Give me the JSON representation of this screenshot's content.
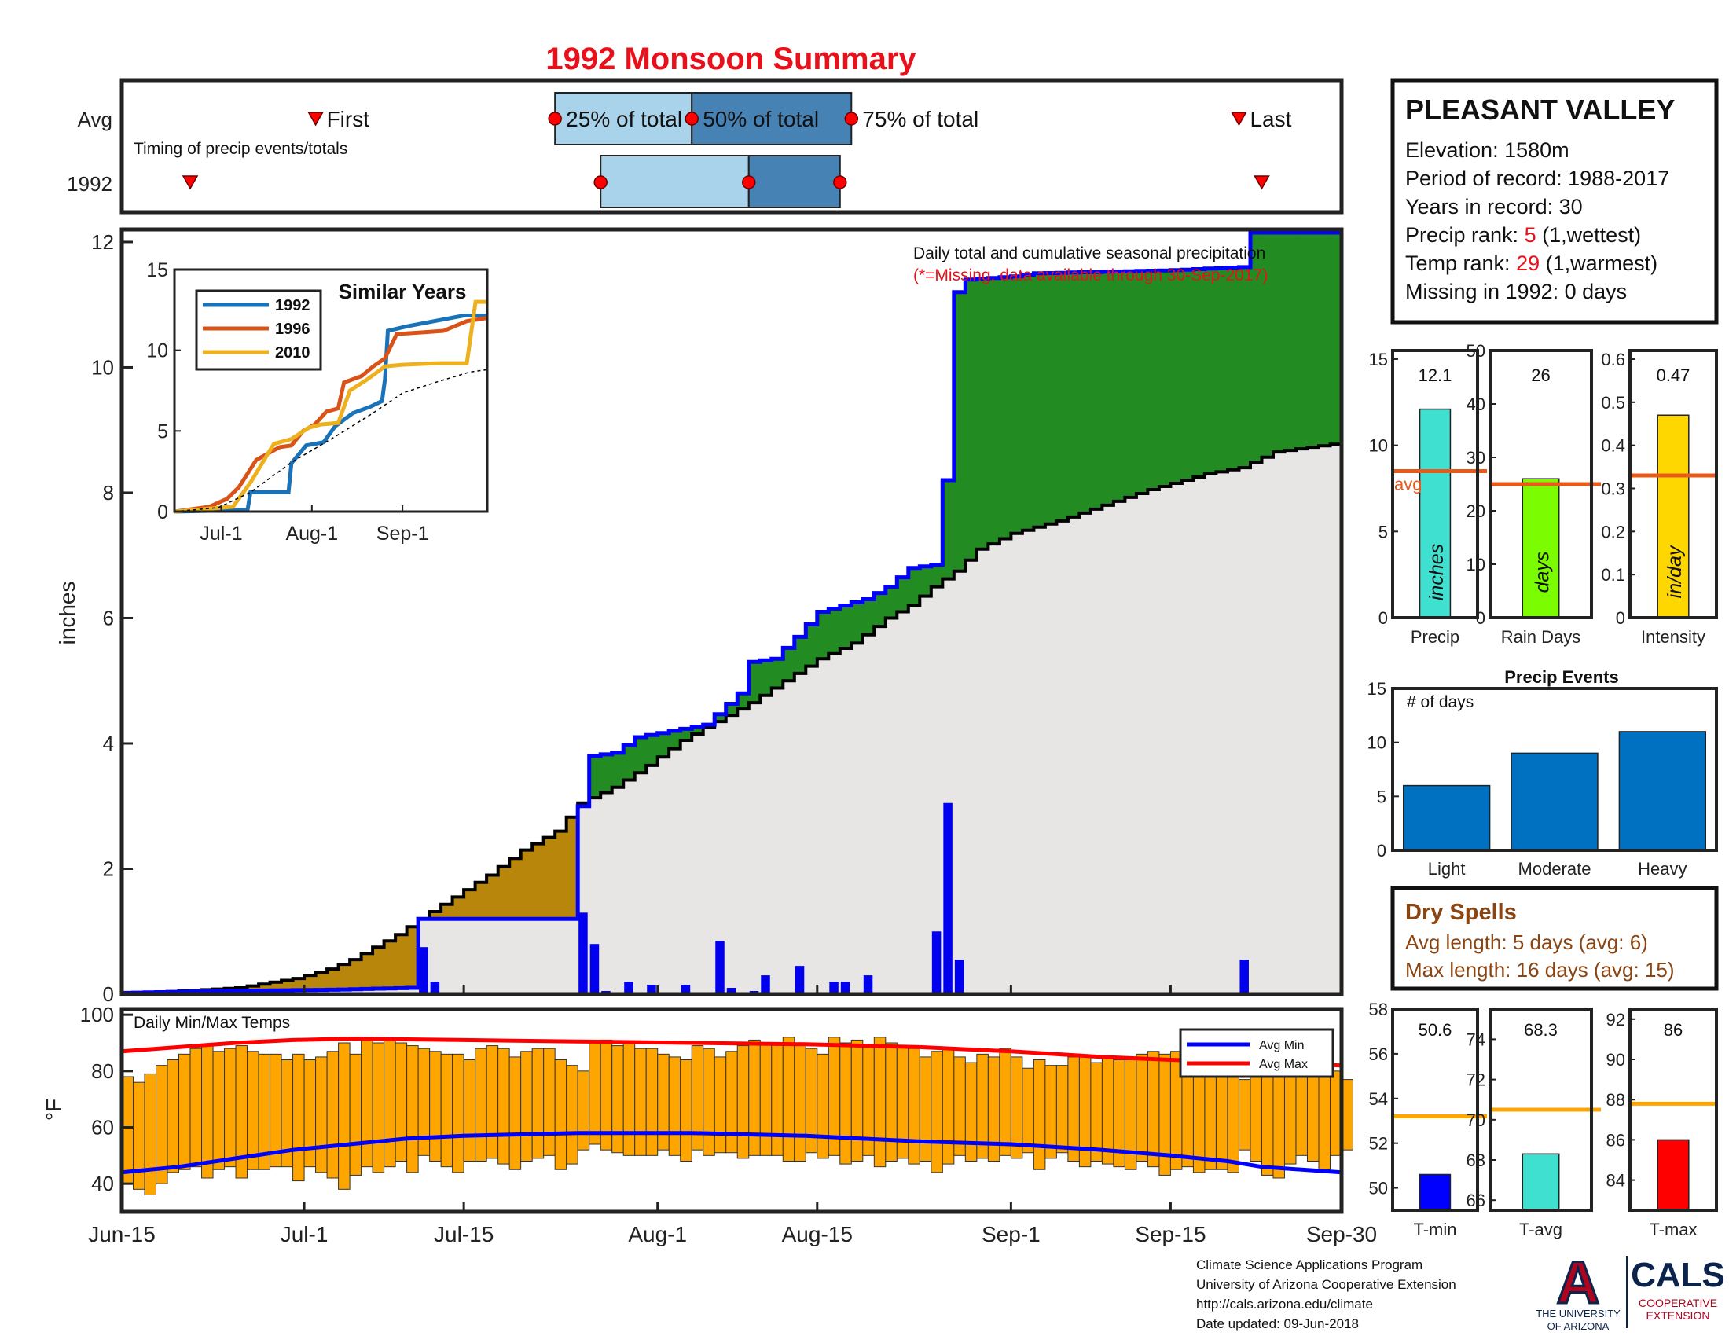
{
  "title": "1992 Monsoon Summary",
  "colors": {
    "title": "#e8101a",
    "precip_total_line": "#0000ff",
    "precip_bar": "#0000ee",
    "avg_cumulative_fill": "#e8e6e4",
    "above_avg_fill": "#228b22",
    "below_avg_fill": "#b8860b",
    "avg_min_line": "#0000ff",
    "avg_max_line": "#ff0000",
    "temp_bar": "#ffa500",
    "timing_light": "#a9d3ea",
    "timing_dark": "#4682b4",
    "marker": "#ff0000",
    "dry_spell_text": "#8b4513",
    "event_bar": "#0070c0",
    "avg_line": "#e85a1a",
    "tavg_line": "#ffa500"
  },
  "timing": {
    "row_labels": [
      "Avg",
      "1992"
    ],
    "note": "Timing of precip events/totals",
    "labels": {
      "first": "First",
      "q25": "25% of total",
      "q50": "50% of total",
      "q75": "75% of total",
      "last": "Last"
    },
    "avg": {
      "first": 17,
      "q25": 38,
      "q50": 50,
      "q75": 64,
      "last": 98
    },
    "year": {
      "first": 6,
      "q25": 42,
      "q50": 55,
      "q75": 63,
      "last": 100
    }
  },
  "x_ticks": [
    "Jun-15",
    "Jul-1",
    "Jul-15",
    "Aug-1",
    "Aug-15",
    "Sep-1",
    "Sep-15",
    "Sep-30"
  ],
  "x_tick_days": [
    0,
    16,
    30,
    47,
    61,
    78,
    92,
    107
  ],
  "station": {
    "name": "PLEASANT VALLEY",
    "elevation_label": "Elevation: 1580m",
    "period_label": "Period of record: 1988-2017",
    "years_label": "Years in record: 30",
    "precip_rank_prefix": "Precip rank: ",
    "precip_rank_value": "5",
    "precip_rank_suffix": " (1,wettest)",
    "temp_rank_prefix": "Temp rank: ",
    "temp_rank_value": "29",
    "temp_rank_suffix": " (1,warmest)",
    "missing_label": "Missing in 1992: 0 days"
  },
  "precip_notes": {
    "line1": "Daily total and cumulative seasonal precipitation",
    "line2": "(*=Missing, data available through 30-Sep-2017)"
  },
  "footer": {
    "line1": "Climate Science Applications Program",
    "line2": "University of Arizona Cooperative Extension",
    "line3": "http://cals.arizona.edu/climate",
    "line4": " Date updated: 09-Jun-2018",
    "logo_ua_1": "THE UNIVERSITY",
    "logo_ua_2": "OF ARIZONA",
    "logo_cals": "CALS",
    "logo_cals_1": "COOPERATIVE",
    "logo_cals_2": "EXTENSION"
  },
  "dry_spells": {
    "title": "Dry Spells",
    "avg_line": "Avg length: 5 days (avg: 6)",
    "max_line": "Max length: 16 days (avg: 15)"
  },
  "chart_data": [
    {
      "id": "cumulative_precip",
      "type": "area",
      "ylabel": "inches",
      "ylim": [
        0,
        12.2
      ],
      "yticks": [
        0,
        2,
        4,
        6,
        8,
        10,
        12
      ],
      "x_days": [
        0,
        107
      ],
      "year_cumulative": [
        [
          0,
          0.02
        ],
        [
          8,
          0.05
        ],
        [
          18,
          0.07
        ],
        [
          25,
          0.1
        ],
        [
          26,
          1.2
        ],
        [
          39,
          1.2
        ],
        [
          40,
          3.0
        ],
        [
          41,
          3.8
        ],
        [
          43,
          3.85
        ],
        [
          45,
          4.1
        ],
        [
          48,
          4.2
        ],
        [
          51,
          4.3
        ],
        [
          54,
          4.8
        ],
        [
          55,
          5.3
        ],
        [
          57,
          5.35
        ],
        [
          59,
          5.7
        ],
        [
          61,
          6.1
        ],
        [
          65,
          6.3
        ],
        [
          67,
          6.5
        ],
        [
          69,
          6.8
        ],
        [
          71,
          6.85
        ],
        [
          72,
          8.2
        ],
        [
          73,
          11.2
        ],
        [
          74,
          11.4
        ],
        [
          78,
          11.45
        ],
        [
          80,
          11.5
        ],
        [
          92,
          11.55
        ],
        [
          98,
          11.6
        ],
        [
          99,
          12.15
        ],
        [
          107,
          12.15
        ]
      ],
      "avg_cumulative": [
        [
          0,
          0
        ],
        [
          5,
          0.05
        ],
        [
          10,
          0.1
        ],
        [
          15,
          0.25
        ],
        [
          18,
          0.4
        ],
        [
          20,
          0.55
        ],
        [
          22,
          0.75
        ],
        [
          24,
          0.95
        ],
        [
          26,
          1.2
        ],
        [
          29,
          1.55
        ],
        [
          32,
          1.9
        ],
        [
          35,
          2.3
        ],
        [
          38,
          2.6
        ],
        [
          40,
          3.05
        ],
        [
          43,
          3.3
        ],
        [
          46,
          3.65
        ],
        [
          49,
          4.05
        ],
        [
          52,
          4.35
        ],
        [
          55,
          4.65
        ],
        [
          58,
          5.0
        ],
        [
          61,
          5.35
        ],
        [
          64,
          5.6
        ],
        [
          67,
          6.0
        ],
        [
          69,
          6.2
        ],
        [
          71,
          6.5
        ],
        [
          73,
          6.75
        ],
        [
          75,
          7.1
        ],
        [
          78,
          7.35
        ],
        [
          82,
          7.55
        ],
        [
          86,
          7.8
        ],
        [
          90,
          8.05
        ],
        [
          95,
          8.3
        ],
        [
          98,
          8.4
        ],
        [
          101,
          8.65
        ],
        [
          105,
          8.75
        ],
        [
          107,
          8.8
        ]
      ],
      "daily_precip": [
        [
          0,
          0.02
        ],
        [
          8,
          0.03
        ],
        [
          18,
          0.02
        ],
        [
          26,
          0.75
        ],
        [
          27,
          0.2
        ],
        [
          40,
          1.3
        ],
        [
          41,
          0.8
        ],
        [
          42,
          0.05
        ],
        [
          44,
          0.2
        ],
        [
          46,
          0.15
        ],
        [
          49,
          0.15
        ],
        [
          52,
          0.85
        ],
        [
          53,
          0.1
        ],
        [
          55,
          0.05
        ],
        [
          56,
          0.3
        ],
        [
          59,
          0.45
        ],
        [
          62,
          0.2
        ],
        [
          63,
          0.2
        ],
        [
          65,
          0.3
        ],
        [
          71,
          1.0
        ],
        [
          72,
          3.05
        ],
        [
          73,
          0.55
        ],
        [
          98,
          0.55
        ]
      ]
    },
    {
      "id": "similar_years",
      "type": "line",
      "title": "Similar Years",
      "xticks": [
        "Jul-1",
        "Aug-1",
        "Sep-1"
      ],
      "xtick_days": [
        16,
        47,
        78
      ],
      "ylim": [
        0,
        15
      ],
      "yticks": [
        0,
        5,
        10,
        15
      ],
      "series": [
        {
          "name": "1992",
          "color": "#1a72b8",
          "values": [
            [
              0,
              0
            ],
            [
              25,
              0.1
            ],
            [
              26,
              1.2
            ],
            [
              39,
              1.2
            ],
            [
              40,
              3.0
            ],
            [
              45,
              4.1
            ],
            [
              51,
              4.3
            ],
            [
              55,
              5.3
            ],
            [
              61,
              6.1
            ],
            [
              67,
              6.5
            ],
            [
              71,
              6.85
            ],
            [
              72,
              8.2
            ],
            [
              73,
              11.2
            ],
            [
              80,
              11.5
            ],
            [
              99,
              12.15
            ],
            [
              107,
              12.15
            ]
          ]
        },
        {
          "name": "1996",
          "color": "#d95319",
          "values": [
            [
              0,
              0
            ],
            [
              12,
              0.3
            ],
            [
              18,
              0.8
            ],
            [
              22,
              1.5
            ],
            [
              28,
              3.2
            ],
            [
              32,
              3.6
            ],
            [
              36,
              4.0
            ],
            [
              40,
              4.1
            ],
            [
              44,
              5.0
            ],
            [
              48,
              5.4
            ],
            [
              52,
              6.2
            ],
            [
              56,
              6.4
            ],
            [
              58,
              8.0
            ],
            [
              64,
              8.4
            ],
            [
              68,
              9.0
            ],
            [
              72,
              9.5
            ],
            [
              76,
              11.0
            ],
            [
              84,
              11.1
            ],
            [
              92,
              11.2
            ],
            [
              100,
              11.8
            ],
            [
              107,
              12.0
            ]
          ]
        },
        {
          "name": "2010",
          "color": "#edb120",
          "values": [
            [
              0,
              0
            ],
            [
              20,
              0.3
            ],
            [
              26,
              1.8
            ],
            [
              30,
              3.0
            ],
            [
              34,
              4.2
            ],
            [
              40,
              4.5
            ],
            [
              46,
              5.2
            ],
            [
              50,
              5.4
            ],
            [
              56,
              5.5
            ],
            [
              60,
              7.5
            ],
            [
              66,
              8.2
            ],
            [
              72,
              9.0
            ],
            [
              78,
              9.1
            ],
            [
              90,
              9.2
            ],
            [
              100,
              9.2
            ],
            [
              103,
              13.0
            ],
            [
              107,
              13.0
            ]
          ]
        },
        {
          "name": "Average",
          "color": "#000000",
          "dashed": true,
          "values": [
            [
              0,
              0
            ],
            [
              15,
              0.25
            ],
            [
              26,
              1.2
            ],
            [
              40,
              3.05
            ],
            [
              55,
              4.65
            ],
            [
              67,
              6.0
            ],
            [
              78,
              7.35
            ],
            [
              90,
              8.05
            ],
            [
              101,
              8.65
            ],
            [
              107,
              8.8
            ]
          ]
        }
      ]
    },
    {
      "id": "daily_temps",
      "type": "bar",
      "title": "Daily Min/Max Temps",
      "ylabel": "°F",
      "ylim": [
        30,
        102
      ],
      "yticks": [
        40,
        60,
        80,
        100
      ],
      "legend": [
        "Avg Min",
        "Avg Max"
      ],
      "legend_position": "top-right",
      "max": [
        78,
        76,
        79,
        82,
        84,
        86,
        88,
        89,
        87,
        88,
        89,
        87,
        86,
        86,
        84,
        86,
        84,
        85,
        87,
        90,
        86,
        92,
        90,
        91,
        90,
        89,
        88,
        87,
        86,
        86,
        84,
        88,
        89,
        88,
        85,
        87,
        88,
        88,
        84,
        82,
        80,
        90,
        91,
        89,
        90,
        88,
        88,
        86,
        85,
        84,
        89,
        88,
        85,
        87,
        89,
        91,
        90,
        90,
        92,
        90,
        88,
        86,
        92,
        90,
        91,
        89,
        92,
        90,
        89,
        88,
        85,
        87,
        88,
        85,
        83,
        86,
        85,
        88,
        85,
        81,
        84,
        82,
        82,
        85,
        85,
        83,
        85,
        84,
        84,
        86,
        87,
        86,
        87,
        86,
        88,
        85,
        84,
        83,
        77,
        78,
        83,
        86,
        84,
        82,
        83,
        84,
        80,
        77
      ],
      "min": [
        40,
        38,
        36,
        40,
        44,
        45,
        46,
        42,
        45,
        46,
        42,
        45,
        45,
        46,
        46,
        41,
        46,
        44,
        42,
        38,
        43,
        46,
        44,
        46,
        48,
        44,
        50,
        48,
        46,
        44,
        48,
        48,
        49,
        47,
        45,
        48,
        49,
        50,
        45,
        47,
        52,
        54,
        52,
        51,
        50,
        50,
        50,
        52,
        50,
        48,
        52,
        50,
        51,
        51,
        49,
        50,
        50,
        50,
        48,
        48,
        51,
        49,
        50,
        47,
        48,
        50,
        46,
        48,
        49,
        47,
        48,
        44,
        47,
        50,
        48,
        49,
        48,
        50,
        49,
        51,
        45,
        49,
        51,
        48,
        46,
        48,
        47,
        46,
        45,
        48,
        46,
        43,
        45,
        46,
        44,
        45,
        45,
        44,
        52,
        48,
        43,
        42,
        47,
        50,
        48,
        45,
        50,
        52
      ],
      "avg_max": [
        [
          0,
          87
        ],
        [
          5,
          88.5
        ],
        [
          10,
          90
        ],
        [
          15,
          91
        ],
        [
          20,
          91.5
        ],
        [
          30,
          91
        ],
        [
          40,
          90.5
        ],
        [
          50,
          90
        ],
        [
          60,
          89.5
        ],
        [
          70,
          88.5
        ],
        [
          78,
          87
        ],
        [
          86,
          85
        ],
        [
          92,
          84
        ],
        [
          100,
          83
        ],
        [
          107,
          82
        ]
      ],
      "avg_min": [
        [
          0,
          44
        ],
        [
          5,
          46
        ],
        [
          10,
          49
        ],
        [
          15,
          52
        ],
        [
          20,
          54
        ],
        [
          25,
          56
        ],
        [
          30,
          57
        ],
        [
          40,
          58
        ],
        [
          50,
          58
        ],
        [
          60,
          57
        ],
        [
          70,
          55
        ],
        [
          78,
          54
        ],
        [
          86,
          52
        ],
        [
          92,
          50
        ],
        [
          97,
          48
        ],
        [
          100,
          46
        ],
        [
          107,
          44
        ]
      ]
    },
    {
      "id": "seasonal_precip",
      "type": "bar",
      "categories": [
        "Precip",
        "Rain Days",
        "Intensity"
      ],
      "panels": [
        {
          "label": "Precip",
          "value": 12.1,
          "value_label": "12.1",
          "avg": 8.5,
          "ylim": [
            0,
            15.5
          ],
          "yticks": [
            0,
            5,
            10,
            15
          ],
          "color": "#40e0d0",
          "unit": "inches",
          "avg_label": "avg"
        },
        {
          "label": "Rain Days",
          "value": 26,
          "value_label": "26",
          "avg": 25,
          "ylim": [
            0,
            50
          ],
          "yticks": [
            0,
            10,
            20,
            30,
            40,
            50
          ],
          "color": "#7cfc00",
          "unit": "days"
        },
        {
          "label": "Intensity",
          "value": 0.47,
          "value_label": "0.47",
          "avg": 0.33,
          "ylim": [
            0,
            0.62
          ],
          "yticks": [
            0,
            0.1,
            0.2,
            0.3,
            0.4,
            0.5,
            0.6
          ],
          "color": "#ffd700",
          "unit": "in/day"
        }
      ]
    },
    {
      "id": "precip_events",
      "type": "bar",
      "title": "Precip Events",
      "ylabel": "# of days",
      "categories": [
        "Light",
        "Moderate",
        "Heavy"
      ],
      "values": [
        6,
        9,
        11
      ],
      "ylim": [
        0,
        15
      ],
      "yticks": [
        0,
        5,
        10,
        15
      ]
    },
    {
      "id": "seasonal_temps",
      "type": "bar",
      "categories": [
        "T-min",
        "T-avg",
        "T-max"
      ],
      "panels": [
        {
          "label": "T-min",
          "value": 50.6,
          "value_label": "50.6",
          "avg": 53.2,
          "ylim": [
            49,
            58
          ],
          "yticks": [
            50,
            52,
            54,
            56,
            58
          ],
          "color": "#0000ff"
        },
        {
          "label": "T-avg",
          "value": 68.3,
          "value_label": "68.3",
          "avg": 70.5,
          "ylim": [
            65.5,
            75.5
          ],
          "yticks": [
            66,
            68,
            70,
            72,
            74
          ],
          "color": "#40e0d0"
        },
        {
          "label": "T-max",
          "value": 86,
          "value_label": "86",
          "avg": 87.8,
          "ylim": [
            82.5,
            92.5
          ],
          "yticks": [
            84,
            86,
            88,
            90,
            92
          ],
          "color": "#ff0000"
        }
      ]
    }
  ]
}
